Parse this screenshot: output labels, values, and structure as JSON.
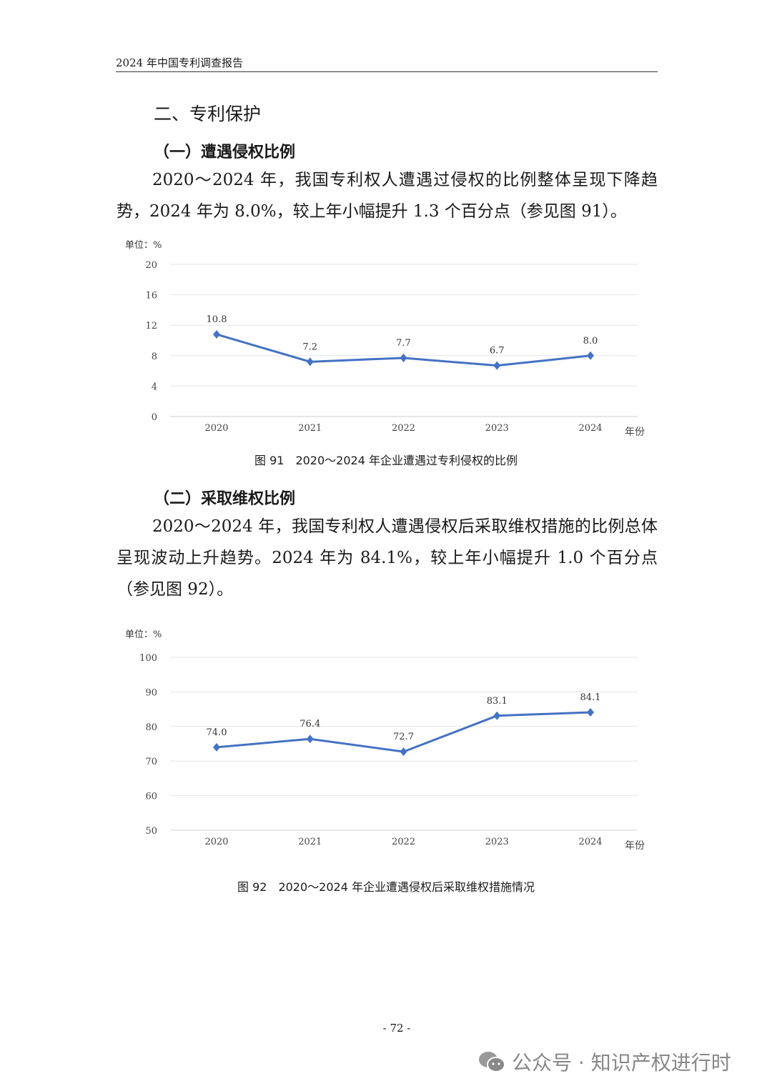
{
  "header": {
    "title": "2024 年中国专利调查报告"
  },
  "section": {
    "title": "二、专利保护"
  },
  "sub1": {
    "title": "（一）遭遇侵权比例",
    "paragraph": "2020～2024 年，我国专利权人遭遇过侵权的比例整体呈现下降趋势，2024 年为 8.0%，较上年小幅提升 1.3 个百分点（参见图 91）。",
    "caption": "图 91　2020～2024 年企业遭遇过专利侵权的比例"
  },
  "sub2": {
    "title": "（二）采取维权比例",
    "paragraph": "2020～2024 年，我国专利权人遭遇侵权后采取维权措施的比例总体呈现波动上升趋势。2024 年为 84.1%，较上年小幅提升 1.0 个百分点（参见图 92）。",
    "caption": "图 92　2020～2024 年企业遭遇侵权后采取维权措施情况"
  },
  "footer": {
    "page": "- 72 -",
    "watermark": "公众号 · 知识产权进行时"
  },
  "colors": {
    "line": "#4472c4",
    "grid": "#e6e6e6"
  },
  "chart_data": [
    {
      "type": "line",
      "title": "图 91　2020～2024 年企业遭遇过专利侵权的比例",
      "unit_label": "单位：%",
      "xlabel": "年份",
      "ylabel": "",
      "categories": [
        "2020",
        "2021",
        "2022",
        "2023",
        "2024"
      ],
      "values": [
        10.8,
        7.2,
        7.7,
        6.7,
        8.0
      ],
      "yticks": [
        0,
        4,
        8,
        12,
        16,
        20
      ],
      "ylim": [
        0,
        20
      ],
      "grid": true
    },
    {
      "type": "line",
      "title": "图 92　2020～2024 年企业遭遇侵权后采取维权措施情况",
      "unit_label": "单位：%",
      "xlabel": "年份",
      "ylabel": "",
      "categories": [
        "2020",
        "2021",
        "2022",
        "2023",
        "2024"
      ],
      "values": [
        74.0,
        76.4,
        72.7,
        83.1,
        84.1
      ],
      "yticks": [
        50,
        60,
        70,
        80,
        90,
        100
      ],
      "ylim": [
        50,
        100
      ],
      "grid": true
    }
  ]
}
